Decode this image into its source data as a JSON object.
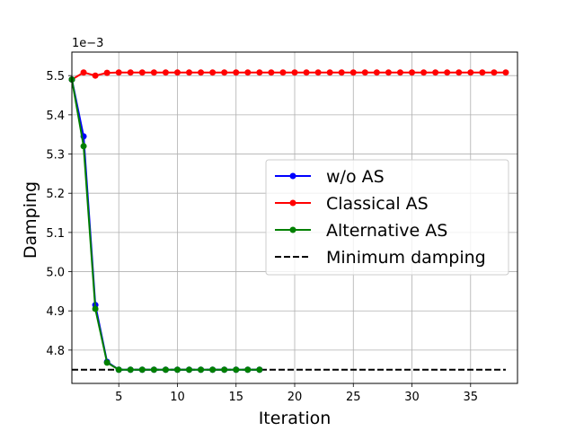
{
  "chart_data": {
    "type": "line",
    "xlabel": "Iteration",
    "ylabel": "Damping",
    "offset_text": "1e−3",
    "xlim": [
      1,
      39
    ],
    "ylim": [
      4.715,
      5.56
    ],
    "xticks": [
      5,
      10,
      15,
      20,
      25,
      30,
      35
    ],
    "yticks": [
      4.8,
      4.9,
      5.0,
      5.1,
      5.2,
      5.3,
      5.4,
      5.5
    ],
    "grid": true,
    "legend_position": "center-right",
    "series": [
      {
        "name": "w/o AS",
        "color": "#0000ff",
        "marker": "circle",
        "x": [
          1,
          2,
          3,
          4,
          5,
          6,
          7,
          8,
          9,
          10,
          11,
          12,
          13,
          14,
          15,
          16,
          17
        ],
        "y": [
          5.49,
          5.345,
          4.915,
          4.77,
          4.75,
          4.75,
          4.75,
          4.75,
          4.75,
          4.75,
          4.75,
          4.75,
          4.75,
          4.75,
          4.75,
          4.75,
          4.75
        ]
      },
      {
        "name": "Classical AS",
        "color": "#ff0000",
        "marker": "circle",
        "x": [
          1,
          2,
          3,
          4,
          5,
          6,
          7,
          8,
          9,
          10,
          11,
          12,
          13,
          14,
          15,
          16,
          17,
          18,
          19,
          20,
          21,
          22,
          23,
          24,
          25,
          26,
          27,
          28,
          29,
          30,
          31,
          32,
          33,
          34,
          35,
          36,
          37,
          38
        ],
        "y": [
          5.49,
          5.508,
          5.5,
          5.507,
          5.508,
          5.508,
          5.508,
          5.508,
          5.508,
          5.508,
          5.508,
          5.508,
          5.508,
          5.508,
          5.508,
          5.508,
          5.508,
          5.508,
          5.508,
          5.508,
          5.508,
          5.508,
          5.508,
          5.508,
          5.508,
          5.508,
          5.508,
          5.508,
          5.508,
          5.508,
          5.508,
          5.508,
          5.508,
          5.508,
          5.508,
          5.508,
          5.508,
          5.508
        ]
      },
      {
        "name": "Alternative AS",
        "color": "#008000",
        "marker": "circle",
        "x": [
          1,
          2,
          3,
          4,
          5,
          6,
          7,
          8,
          9,
          10,
          11,
          12,
          13,
          14,
          15,
          16,
          17
        ],
        "y": [
          5.49,
          5.32,
          4.905,
          4.768,
          4.75,
          4.75,
          4.75,
          4.75,
          4.75,
          4.75,
          4.75,
          4.75,
          4.75,
          4.75,
          4.75,
          4.75,
          4.75
        ]
      },
      {
        "name": "Minimum damping",
        "color": "#000000",
        "dashed": true,
        "x": [
          1,
          38
        ],
        "y": [
          4.75,
          4.75
        ]
      }
    ]
  }
}
